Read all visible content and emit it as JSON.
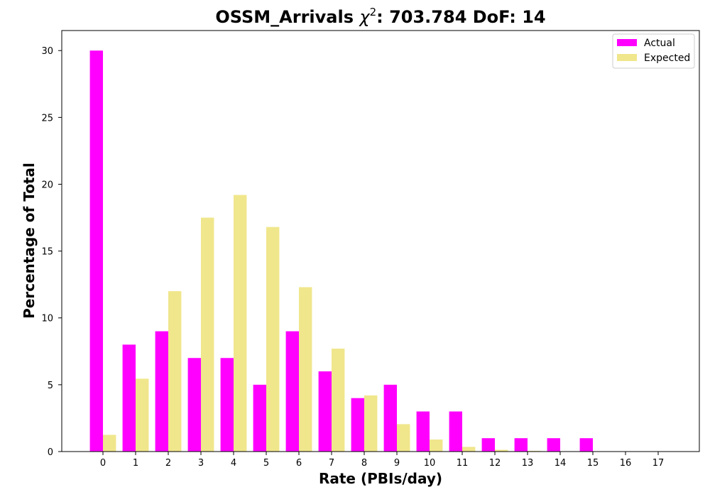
{
  "chart_data": {
    "type": "bar",
    "title_prefix": "OSSM_Arrivals ",
    "title_chi": "χ",
    "title_sup": "2",
    "title_suffix": ": 703.784 DoF: 14",
    "xlabel": "Rate (PBIs/day)",
    "ylabel": "Percentage of Total",
    "ylim": [
      0,
      31.5
    ],
    "yticks": [
      0,
      5,
      10,
      15,
      20,
      25,
      30
    ],
    "categories": [
      "0",
      "1",
      "2",
      "3",
      "4",
      "5",
      "6",
      "7",
      "8",
      "9",
      "10",
      "11",
      "12",
      "13",
      "14",
      "15",
      "16",
      "17"
    ],
    "series": [
      {
        "name": "Actual",
        "color": "#ff00ff",
        "values": [
          30,
          8,
          9,
          7,
          7,
          5,
          9,
          6,
          4,
          5,
          3,
          3,
          1,
          1,
          1,
          1,
          0,
          0
        ]
      },
      {
        "name": "Expected",
        "color": "#f0e68c",
        "values": [
          1.25,
          5.45,
          12.0,
          17.5,
          19.2,
          16.8,
          12.3,
          7.7,
          4.2,
          2.05,
          0.9,
          0.35,
          0.13,
          0.05,
          0.02,
          0.0,
          0.0,
          0.0
        ]
      }
    ],
    "legend_position": "top-right",
    "grid": false
  }
}
